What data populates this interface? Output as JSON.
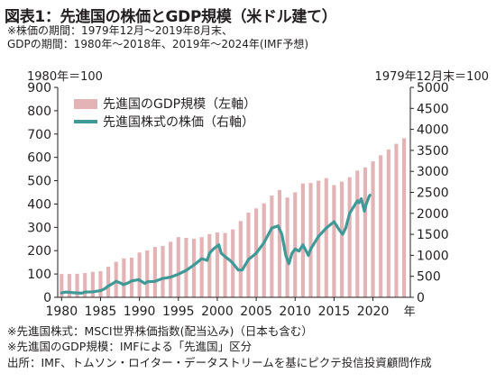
{
  "title": "図表1：先進国の株価とGDP規模（米ドル建て）",
  "subtitle_lines": [
    "※株価の期間：1979年12月～2019年8月末、",
    "GDPの期間：1980年～2018年、2019年～2024年(IMF予想)"
  ],
  "footnotes": [
    "※先進国株式：MSCI世界株価指数(配当込み)（日本も含む）",
    "※先進国のGDP規模：IMFによる「先進国」区分",
    "出所：IMF、トムソン・ロイター・データストリームを基にピクテ投信投資顧問作成"
  ],
  "chart_data": {
    "type": "bar+line",
    "left_axis_label": "1980年＝100",
    "right_axis_label": "1979年12月末＝100",
    "x_unit": "年",
    "x_ticks": [
      "1980",
      "1985",
      "1990",
      "1995",
      "2000",
      "2005",
      "2010",
      "2015",
      "2020"
    ],
    "x_range": [
      1979.5,
      2024.8
    ],
    "y_left_range": [
      0,
      900
    ],
    "y_left_ticks": [
      "0",
      "100",
      "200",
      "300",
      "400",
      "500",
      "600",
      "700",
      "800",
      "900"
    ],
    "y_right_range": [
      0,
      5000
    ],
    "y_right_ticks": [
      "0",
      "500",
      "1000",
      "1500",
      "2000",
      "2500",
      "3000",
      "3500",
      "4000",
      "4500",
      "5000"
    ],
    "grid": false,
    "legend_position": "top-left",
    "series": [
      {
        "name": "先進国のGDP規模（左軸）",
        "kind": "bar",
        "axis": "left",
        "color": "#e3b3b6",
        "x": [
          1980,
          1981,
          1982,
          1983,
          1984,
          1985,
          1986,
          1987,
          1988,
          1989,
          1990,
          1991,
          1992,
          1993,
          1994,
          1995,
          1996,
          1997,
          1998,
          1999,
          2000,
          2001,
          2002,
          2003,
          2004,
          2005,
          2006,
          2007,
          2008,
          2009,
          2010,
          2011,
          2012,
          2013,
          2014,
          2015,
          2016,
          2017,
          2018,
          2019,
          2020,
          2021,
          2022,
          2023,
          2024
        ],
        "values": [
          100,
          100,
          101,
          104,
          109,
          112,
          131,
          152,
          167,
          170,
          192,
          201,
          216,
          220,
          238,
          258,
          255,
          251,
          258,
          271,
          278,
          276,
          291,
          327,
          363,
          381,
          403,
          436,
          460,
          428,
          450,
          488,
          490,
          500,
          511,
          481,
          496,
          515,
          543,
          557,
          583,
          609,
          634,
          658,
          682
        ]
      },
      {
        "name": "先進国株式の株価（右軸）",
        "kind": "line",
        "axis": "right",
        "color": "#3f9a97",
        "x": [
          1979.9,
          1980.5,
          1981,
          1981.5,
          1982,
          1982.6,
          1983,
          1984,
          1985,
          1985.5,
          1986,
          1986.5,
          1987,
          1987.7,
          1987.9,
          1988.5,
          1989,
          1989.9,
          1990.7,
          1991,
          1992,
          1993,
          1994,
          1995,
          1996,
          1997,
          1998,
          1998.7,
          1999,
          1999.5,
          2000.2,
          2000.5,
          2001,
          2001.7,
          2002,
          2002.7,
          2003.2,
          2004,
          2005,
          2006,
          2007,
          2007.8,
          2008.3,
          2008.8,
          2009.2,
          2009.6,
          2010,
          2010.5,
          2011,
          2011.7,
          2012,
          2013,
          2014,
          2015,
          2015.7,
          2016.1,
          2016.5,
          2017,
          2018,
          2018.2,
          2018.5,
          2018.9,
          2019.1,
          2019.5,
          2019.67
        ],
        "values": [
          100,
          125,
          120,
          110,
          105,
          100,
          125,
          130,
          160,
          200,
          270,
          320,
          380,
          330,
          300,
          340,
          390,
          420,
          330,
          370,
          380,
          450,
          480,
          550,
          640,
          770,
          920,
          880,
          1050,
          1150,
          1250,
          1050,
          970,
          870,
          810,
          650,
          650,
          900,
          1050,
          1300,
          1650,
          1700,
          1500,
          1000,
          800,
          1050,
          1150,
          1100,
          1250,
          1000,
          1150,
          1450,
          1650,
          1800,
          1600,
          1500,
          1650,
          2000,
          2300,
          2250,
          2350,
          2050,
          2200,
          2400,
          2450
        ]
      }
    ]
  }
}
